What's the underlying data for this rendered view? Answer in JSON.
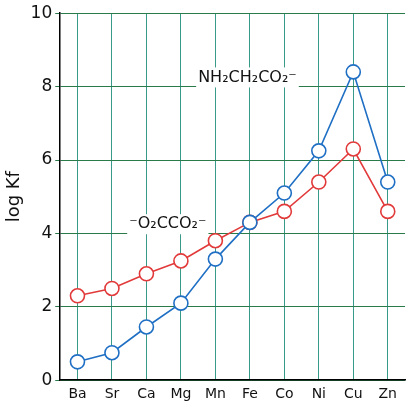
{
  "chart_data": {
    "type": "line",
    "y_label": "log Kf",
    "categories": [
      "Ba",
      "Sr",
      "Ca",
      "Mg",
      "Mn",
      "Fe",
      "Co",
      "Ni",
      "Cu",
      "Zn"
    ],
    "series": [
      {
        "name": "NH₂CH₂CO₂⁻",
        "color": "#1f6fc4",
        "marker": "circle",
        "line_style": "solid",
        "values": [
          0.5,
          0.75,
          1.45,
          2.1,
          3.3,
          4.3,
          5.1,
          6.25,
          8.4,
          5.4
        ]
      },
      {
        "name": "⁻O₂CCO₂⁻",
        "color": "#e23a3a",
        "marker": "circle",
        "line_style": "solid",
        "values": [
          2.3,
          2.5,
          2.9,
          3.25,
          3.8,
          4.3,
          4.6,
          5.4,
          6.3,
          4.6
        ]
      }
    ],
    "ylim": [
      0,
      10
    ],
    "yticks": [
      0,
      2,
      4,
      6,
      8,
      10
    ],
    "grid": true
  }
}
